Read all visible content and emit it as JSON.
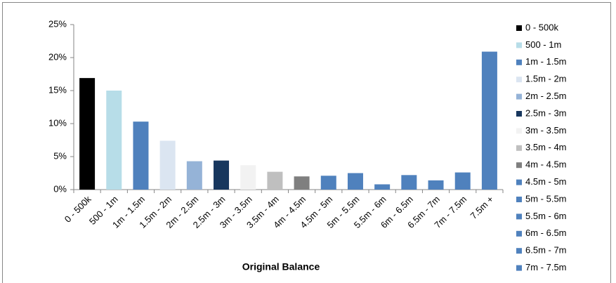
{
  "chart_data": {
    "type": "bar",
    "x_label": "Original Balance",
    "categories": [
      "0 - 500k",
      "500 - 1m",
      "1m - 1.5m",
      "1.5m - 2m",
      "2m - 2.5m",
      "2.5m - 3m",
      "3m - 3.5m",
      "3.5m - 4m",
      "4m - 4.5m",
      "4.5m - 5m",
      "5m - 5.5m",
      "5.5m - 6m",
      "6m - 6.5m",
      "6.5m - 7m",
      "7m - 7.5m",
      "7.5m +"
    ],
    "values": [
      16.9,
      15.0,
      10.3,
      7.4,
      4.3,
      4.4,
      3.7,
      2.7,
      2.0,
      2.1,
      2.5,
      0.8,
      2.2,
      1.4,
      2.6,
      20.9
    ],
    "colors": [
      "#000000",
      "#b7dde8",
      "#4f81bd",
      "#dbe5f1",
      "#95b3d7",
      "#17375e",
      "#f2f2f2",
      "#bfbfbf",
      "#7f7f7f",
      "#4f81bd",
      "#4f81bd",
      "#4f81bd",
      "#4f81bd",
      "#4f81bd",
      "#4f81bd",
      "#4f81bd"
    ],
    "ylim": [
      0,
      25
    ],
    "yticks": [
      {
        "value": 0,
        "label": "0%"
      },
      {
        "value": 5,
        "label": "5%"
      },
      {
        "value": 10,
        "label": "10%"
      },
      {
        "value": 15,
        "label": "15%"
      },
      {
        "value": 20,
        "label": "20%"
      },
      {
        "value": 25,
        "label": "25%"
      }
    ],
    "legend_position": "right"
  }
}
